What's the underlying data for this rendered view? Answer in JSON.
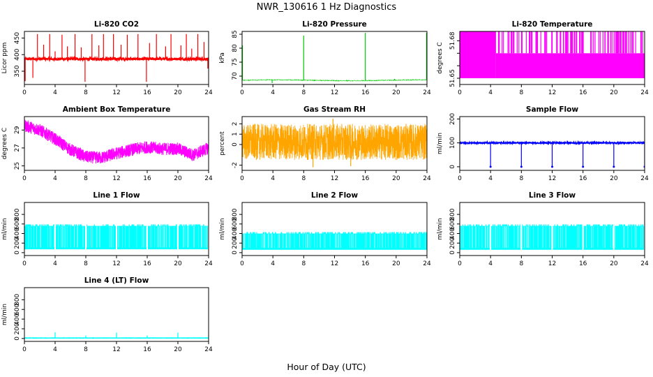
{
  "page": {
    "title": "NWR_130616  1 Hz Diagnostics",
    "xlabel": "Hour of Day (UTC)"
  },
  "chart_data": [
    {
      "type": "line",
      "title": "Li-820 CO2",
      "ylabel": "Licor ppm",
      "color": "#ff0000",
      "xlim": [
        0,
        24
      ],
      "xticks": [
        0,
        4,
        8,
        12,
        16,
        20,
        24
      ],
      "ylim": [
        310,
        470
      ],
      "yticks": [
        350,
        400,
        450
      ],
      "signal": "co2",
      "band": [
        383,
        391
      ],
      "spikes": [
        {
          "x": 0.1,
          "y": 320
        },
        {
          "x": 1.1,
          "y": 330
        },
        {
          "x": 1.7,
          "y": 462
        },
        {
          "x": 2.5,
          "y": 430
        },
        {
          "x": 3.3,
          "y": 462
        },
        {
          "x": 4.0,
          "y": 410
        },
        {
          "x": 4.9,
          "y": 460
        },
        {
          "x": 5.6,
          "y": 425
        },
        {
          "x": 6.6,
          "y": 462
        },
        {
          "x": 7.4,
          "y": 422
        },
        {
          "x": 7.9,
          "y": 318
        },
        {
          "x": 8.8,
          "y": 462
        },
        {
          "x": 9.7,
          "y": 428
        },
        {
          "x": 10.3,
          "y": 462
        },
        {
          "x": 11.6,
          "y": 462
        },
        {
          "x": 12.6,
          "y": 430
        },
        {
          "x": 13.4,
          "y": 460
        },
        {
          "x": 14.8,
          "y": 462
        },
        {
          "x": 15.9,
          "y": 318
        },
        {
          "x": 16.3,
          "y": 435
        },
        {
          "x": 17.2,
          "y": 462
        },
        {
          "x": 18.4,
          "y": 425
        },
        {
          "x": 19.1,
          "y": 462
        },
        {
          "x": 20.4,
          "y": 428
        },
        {
          "x": 21.1,
          "y": 462
        },
        {
          "x": 21.8,
          "y": 418
        },
        {
          "x": 22.6,
          "y": 462
        },
        {
          "x": 23.4,
          "y": 438
        },
        {
          "x": 23.9,
          "y": 358
        }
      ]
    },
    {
      "type": "line",
      "title": "Li-820 Pressure",
      "ylabel": "kPa",
      "color": "#00cc00",
      "xlim": [
        0,
        24
      ],
      "xticks": [
        0,
        4,
        8,
        12,
        16,
        20,
        24
      ],
      "ylim": [
        67,
        86
      ],
      "yticks": [
        70,
        75,
        80,
        85
      ],
      "signal": "pressure",
      "base": 68.5,
      "spikes": [
        {
          "x": 0.05,
          "y": 81
        },
        {
          "x": 3.9,
          "y": 67.5
        },
        {
          "x": 8.0,
          "y": 84.5
        },
        {
          "x": 16.0,
          "y": 85.5
        },
        {
          "x": 19.8,
          "y": 69.0
        },
        {
          "x": 23.95,
          "y": 85.5
        }
      ]
    },
    {
      "type": "area",
      "title": "Li-820 Temperature",
      "ylabel": "degrees C",
      "color": "#ff00ff",
      "xlim": [
        0,
        24
      ],
      "xticks": [
        0,
        4,
        8,
        12,
        16,
        20,
        24
      ],
      "ylim": [
        51.645,
        51.6875
      ],
      "yticks": [
        51.65,
        51.66,
        51.67,
        51.68
      ],
      "yticklabels": [
        "51.65",
        "",
        "",
        "51.68"
      ],
      "signal": "stepband",
      "low": 51.65,
      "mid": 51.67,
      "high": 51.6875,
      "high_until": 4.7
    },
    {
      "type": "line",
      "title": "Ambient Box Temperature",
      "ylabel": "degrees C",
      "color": "#ff00ff",
      "xlim": [
        0,
        24
      ],
      "xticks": [
        0,
        4,
        8,
        12,
        16,
        20,
        24
      ],
      "ylim": [
        24.5,
        30.5
      ],
      "yticks": [
        25,
        27,
        29
      ],
      "signal": "ambient",
      "curve": [
        {
          "x": 0,
          "y": 29.5
        },
        {
          "x": 2,
          "y": 29.0
        },
        {
          "x": 4,
          "y": 28.0
        },
        {
          "x": 6,
          "y": 26.8
        },
        {
          "x": 8,
          "y": 26.0
        },
        {
          "x": 10,
          "y": 25.9
        },
        {
          "x": 12,
          "y": 26.4
        },
        {
          "x": 14,
          "y": 26.8
        },
        {
          "x": 16,
          "y": 27.1
        },
        {
          "x": 18,
          "y": 26.9
        },
        {
          "x": 20,
          "y": 26.9
        },
        {
          "x": 22,
          "y": 26.2
        },
        {
          "x": 24,
          "y": 27.0
        }
      ]
    },
    {
      "type": "line",
      "title": "Gas Stream RH",
      "ylabel": "percent",
      "color": "#ffa500",
      "xlim": [
        0,
        24
      ],
      "xticks": [
        0,
        4,
        8,
        12,
        16,
        20,
        24
      ],
      "ylim": [
        -2.5,
        2.7
      ],
      "yticks": [
        -2,
        0,
        1,
        2
      ],
      "signal": "rh",
      "band": [
        -1.5,
        2.0
      ]
    },
    {
      "type": "line",
      "title": "Sample Flow",
      "ylabel": "ml/min",
      "color": "#0000ff",
      "xlim": [
        0,
        24
      ],
      "xticks": [
        0,
        4,
        8,
        12,
        16,
        20,
        24
      ],
      "ylim": [
        -15,
        210
      ],
      "yticks": [
        0,
        100,
        200
      ],
      "signal": "sampleflow",
      "base": 100,
      "dips": [
        4.0,
        8.0,
        12.0,
        16.0,
        20.0,
        24.0
      ]
    },
    {
      "type": "area",
      "title": "Line 1 Flow",
      "ylabel": "ml/min",
      "color": "#00ffff",
      "xlim": [
        0,
        24
      ],
      "xticks": [
        0,
        4,
        8,
        12,
        16,
        20,
        24
      ],
      "ylim": [
        -60,
        1050
      ],
      "yticks": [
        0,
        200,
        400,
        600,
        800
      ],
      "signal": "lineband",
      "band": [
        70,
        560
      ],
      "gaps": [
        4.0,
        8.0,
        12.0,
        16.0,
        20.0,
        24.0
      ]
    },
    {
      "type": "area",
      "title": "Line 2 Flow",
      "ylabel": "ml/min",
      "color": "#00ffff",
      "xlim": [
        0,
        24
      ],
      "xticks": [
        0,
        4,
        8,
        12,
        16,
        20,
        24
      ],
      "ylim": [
        -60,
        1050
      ],
      "yticks": [
        0,
        200,
        400,
        600,
        800
      ],
      "signal": "lineband",
      "band": [
        60,
        400
      ],
      "gaps": []
    },
    {
      "type": "area",
      "title": "Line 3 Flow",
      "ylabel": "ml/min",
      "color": "#00ffff",
      "xlim": [
        0,
        24
      ],
      "xticks": [
        0,
        4,
        8,
        12,
        16,
        20,
        24
      ],
      "ylim": [
        -60,
        1050
      ],
      "yticks": [
        0,
        200,
        400,
        600,
        800
      ],
      "signal": "lineband",
      "band": [
        60,
        560
      ],
      "gaps": [
        4.0,
        8.0,
        12.0,
        16.0,
        20.0,
        24.0
      ]
    },
    {
      "type": "line",
      "title": "Line 4 (LT) Flow",
      "ylabel": "ml/min",
      "color": "#00ffff",
      "xlim": [
        0,
        24
      ],
      "xticks": [
        0,
        4,
        8,
        12,
        16,
        20,
        24
      ],
      "ylim": [
        -60,
        1050
      ],
      "yticks": [
        0,
        200,
        400,
        600,
        800
      ],
      "signal": "flat",
      "base": 10,
      "spikes": [
        {
          "x": 4.0,
          "y": 130
        },
        {
          "x": 8.0,
          "y": 60
        },
        {
          "x": 12.0,
          "y": 120
        },
        {
          "x": 16.0,
          "y": 60
        },
        {
          "x": 20.0,
          "y": 120
        },
        {
          "x": 24.0,
          "y": 70
        }
      ]
    }
  ]
}
